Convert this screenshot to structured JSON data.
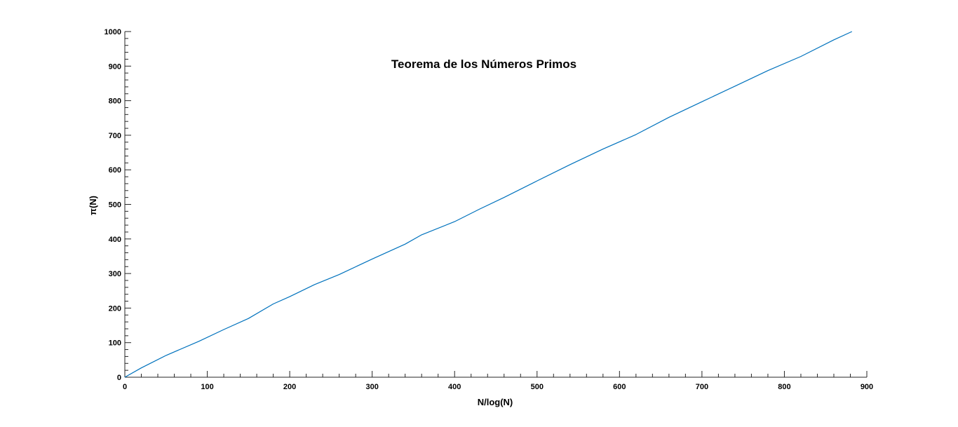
{
  "chart_data": {
    "type": "line",
    "title": "Teorema de los Números Primos",
    "xlabel": "N/log(N)",
    "ylabel": "π(N)",
    "xlim": [
      0,
      900
    ],
    "ylim": [
      0,
      1000
    ],
    "xticks": [
      "0",
      "100",
      "200",
      "300",
      "400",
      "500",
      "600",
      "700",
      "800",
      "900"
    ],
    "yticks": [
      "0",
      "100",
      "200",
      "300",
      "400",
      "500",
      "600",
      "700",
      "800",
      "900",
      "1000"
    ],
    "grid": false,
    "series": [
      {
        "color": "#0072bd",
        "x": [
          0,
          20,
          50,
          90,
          120,
          150,
          180,
          200,
          230,
          260,
          300,
          340,
          360,
          400,
          430,
          460,
          500,
          540,
          580,
          620,
          660,
          700,
          740,
          780,
          820,
          860,
          882
        ],
        "y": [
          0,
          27,
          63,
          104,
          138,
          170,
          212,
          233,
          268,
          297,
          342,
          385,
          412,
          450,
          486,
          520,
          568,
          615,
          660,
          702,
          752,
          797,
          842,
          887,
          928,
          976,
          1000
        ]
      }
    ]
  }
}
